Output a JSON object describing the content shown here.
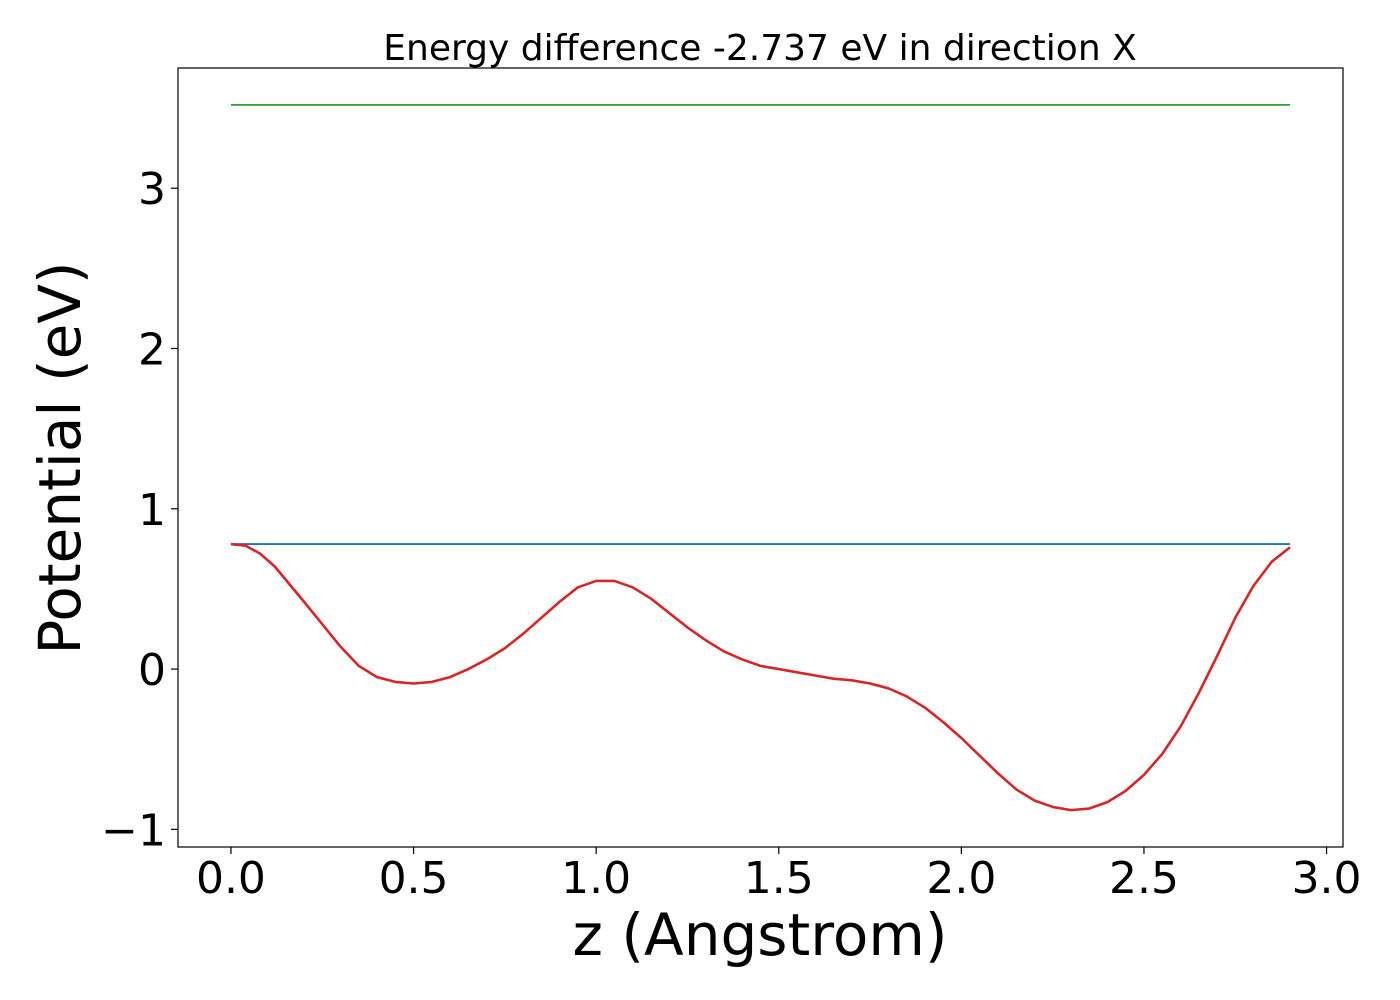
{
  "chart_data": {
    "type": "line",
    "title": "Energy difference -2.737 eV in direction X",
    "xlabel": "z (Angstrom)",
    "ylabel": "Potential (eV)",
    "xlim": [
      -0.145,
      3.045
    ],
    "ylim": [
      -1.11,
      3.75
    ],
    "xticks": [
      0.0,
      0.5,
      1.0,
      1.5,
      2.0,
      2.5,
      3.0
    ],
    "xtick_labels": [
      "0.0",
      "0.5",
      "1.0",
      "1.5",
      "2.0",
      "2.5",
      "3.0"
    ],
    "yticks": [
      -1,
      0,
      1,
      2,
      3
    ],
    "ytick_labels": [
      "−1",
      "0",
      "1",
      "2",
      "3"
    ],
    "grid": false,
    "series": [
      {
        "color": "#2ca02c",
        "x": [
          0.0,
          2.9
        ],
        "y": [
          3.52,
          3.52
        ]
      },
      {
        "color": "#1f77b4",
        "x": [
          0.0,
          2.9
        ],
        "y": [
          0.78,
          0.78
        ]
      },
      {
        "color": "#d62728",
        "x": [
          0.0,
          0.04,
          0.08,
          0.12,
          0.16,
          0.2,
          0.25,
          0.3,
          0.35,
          0.4,
          0.45,
          0.5,
          0.55,
          0.6,
          0.65,
          0.7,
          0.75,
          0.8,
          0.85,
          0.9,
          0.95,
          1.0,
          1.05,
          1.1,
          1.15,
          1.2,
          1.25,
          1.3,
          1.35,
          1.4,
          1.45,
          1.5,
          1.55,
          1.6,
          1.65,
          1.7,
          1.75,
          1.8,
          1.85,
          1.9,
          1.95,
          2.0,
          2.05,
          2.1,
          2.15,
          2.2,
          2.25,
          2.3,
          2.35,
          2.4,
          2.45,
          2.5,
          2.55,
          2.6,
          2.65,
          2.7,
          2.75,
          2.8,
          2.85,
          2.9
        ],
        "y": [
          0.78,
          0.77,
          0.72,
          0.64,
          0.53,
          0.42,
          0.28,
          0.14,
          0.02,
          -0.05,
          -0.08,
          -0.09,
          -0.08,
          -0.05,
          0.0,
          0.06,
          0.13,
          0.22,
          0.32,
          0.42,
          0.51,
          0.55,
          0.55,
          0.51,
          0.44,
          0.35,
          0.26,
          0.18,
          0.11,
          0.06,
          0.02,
          0.0,
          -0.02,
          -0.04,
          -0.06,
          -0.07,
          -0.09,
          -0.12,
          -0.17,
          -0.24,
          -0.33,
          -0.43,
          -0.54,
          -0.65,
          -0.75,
          -0.82,
          -0.86,
          -0.88,
          -0.87,
          -0.83,
          -0.76,
          -0.66,
          -0.53,
          -0.36,
          -0.15,
          0.08,
          0.32,
          0.52,
          0.67,
          0.76
        ]
      }
    ]
  }
}
